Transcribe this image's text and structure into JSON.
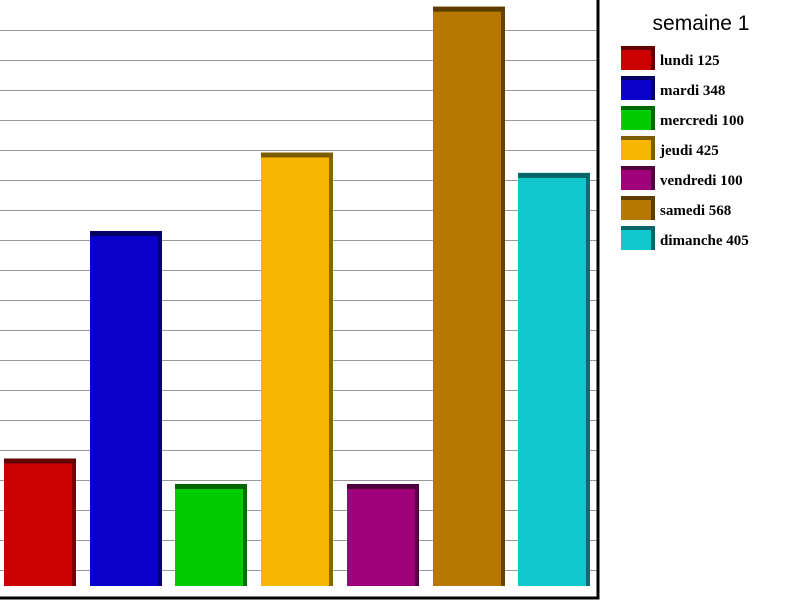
{
  "chart_data": {
    "type": "bar",
    "title": "semaine 1",
    "categories": [
      "lundi",
      "mardi",
      "mercredi",
      "jeudi",
      "vendredi",
      "samedi",
      "dimanche"
    ],
    "values": [
      125,
      348,
      100,
      425,
      100,
      568,
      405
    ],
    "value_labels": [
      "125",
      "348",
      "100",
      "425",
      "100",
      "568",
      "405"
    ],
    "colors": [
      "#cc0000",
      "#0a00cc",
      "#00cc00",
      "#f7b700",
      "#a0007a",
      "#b87800",
      "#10c8cc"
    ],
    "ylim": [
      0,
      580
    ],
    "grid": true,
    "legend_position": "right",
    "xlabel": "",
    "ylabel": ""
  }
}
